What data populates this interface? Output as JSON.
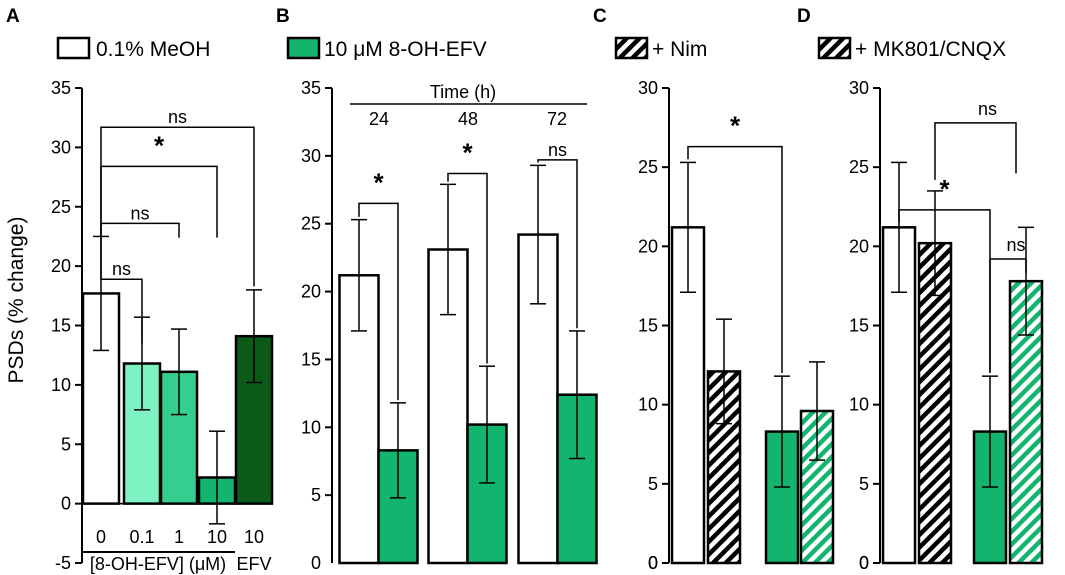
{
  "chart_data": [
    {
      "panel": "A",
      "type": "bar",
      "legend": "0.1% MeOH",
      "ylabel": "PSDs (% change)",
      "ylim": [
        -5,
        35
      ],
      "yticks": [
        -5,
        0,
        5,
        10,
        15,
        20,
        25,
        30,
        35
      ],
      "categories": [
        "0",
        "0.1",
        "1",
        "10",
        "10"
      ],
      "xgroup_label": "[8-OH-EFV] (μM)",
      "xgroup_extra": "EFV",
      "bars": [
        {
          "label": "0",
          "value": 17.7,
          "error": 4.8,
          "fill": "#ffffff",
          "hatch": false
        },
        {
          "label": "0.1",
          "value": 11.8,
          "error": 3.9,
          "fill": "#7ff2c4",
          "hatch": false
        },
        {
          "label": "1",
          "value": 11.1,
          "error": 3.6,
          "fill": "#34cf8e",
          "hatch": false
        },
        {
          "label": "10",
          "value": 2.2,
          "error": 3.9,
          "fill": "#12b46e",
          "hatch": false
        },
        {
          "label": "10",
          "value": 14.1,
          "error": 3.9,
          "fill": "#0b5a18",
          "hatch": false
        }
      ],
      "significance": [
        {
          "from": 0,
          "to": 1,
          "label": "ns"
        },
        {
          "from": 0,
          "to": 2,
          "label": "ns"
        },
        {
          "from": 0,
          "to": 3,
          "label": "*"
        },
        {
          "from": 0,
          "to": 4,
          "label": "ns"
        }
      ]
    },
    {
      "panel": "B",
      "type": "bar",
      "legend": "10 μM 8-OH-EFV",
      "ylim": [
        0,
        35
      ],
      "yticks": [
        5,
        10,
        15,
        20,
        25,
        30,
        35
      ],
      "time_label": "Time (h)",
      "groups": [
        "24",
        "48",
        "72"
      ],
      "series": [
        {
          "name": "0.1% MeOH",
          "values": [
            21.2,
            23.1,
            24.2
          ],
          "errors": [
            4.1,
            4.8,
            5.1
          ],
          "fill": "#ffffff"
        },
        {
          "name": "10 μM 8-OH-EFV",
          "values": [
            8.3,
            10.2,
            12.4
          ],
          "errors": [
            3.5,
            4.3,
            4.7
          ],
          "fill": "#12b46e"
        }
      ],
      "significance": [
        {
          "group": 0,
          "label": "*"
        },
        {
          "group": 1,
          "label": "*"
        },
        {
          "group": 2,
          "label": "ns"
        }
      ]
    },
    {
      "panel": "C",
      "type": "bar",
      "legend": "+ Nim",
      "ylim": [
        0,
        30
      ],
      "yticks": [
        0,
        5,
        10,
        15,
        20,
        25,
        30
      ],
      "bars": [
        {
          "value": 21.2,
          "error": 4.1,
          "fill": "#ffffff",
          "hatch": false
        },
        {
          "value": 12.1,
          "error": 3.3,
          "fill": "#000000",
          "hatch": true
        },
        {
          "value": 8.3,
          "error": 3.5,
          "fill": "#12b46e",
          "hatch": false
        },
        {
          "value": 9.6,
          "error": 3.1,
          "fill": "#12b46e",
          "hatch": true
        }
      ],
      "significance": [
        {
          "from": 0,
          "to": 2,
          "label": "*"
        }
      ]
    },
    {
      "panel": "D",
      "type": "bar",
      "legend": "+ MK801/CNQX",
      "ylim": [
        0,
        30
      ],
      "yticks": [
        0,
        5,
        10,
        15,
        20,
        25,
        30
      ],
      "bars": [
        {
          "value": 21.2,
          "error": 4.1,
          "fill": "#ffffff",
          "hatch": false
        },
        {
          "value": 20.2,
          "error": 3.3,
          "fill": "#000000",
          "hatch": true
        },
        {
          "value": 8.3,
          "error": 3.5,
          "fill": "#12b46e",
          "hatch": false
        },
        {
          "value": 17.8,
          "error": 3.4,
          "fill": "#12b46e",
          "hatch": true
        }
      ],
      "significance": [
        {
          "from": 0,
          "to": 2,
          "label": "*"
        },
        {
          "from": 2,
          "to": 3,
          "label": "ns"
        },
        {
          "from": 1,
          "to": 2.5,
          "label": "ns"
        }
      ]
    }
  ]
}
